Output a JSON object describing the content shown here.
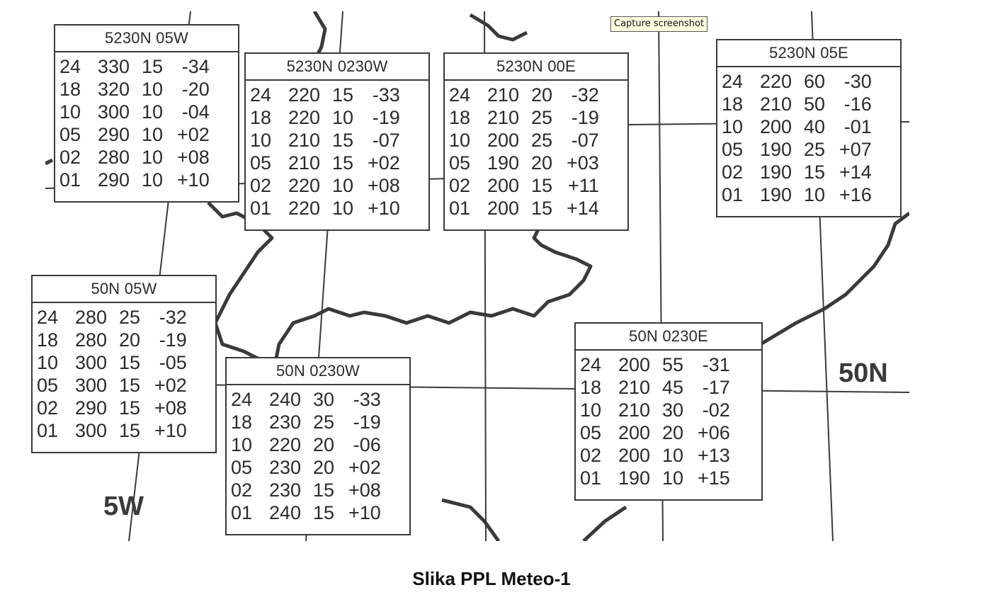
{
  "tooltip": "Capture screenshot",
  "caption": "Slika PPL Meteo-1",
  "labels": {
    "lat": "50N",
    "lon": "5W"
  },
  "boxes": [
    {
      "title": "5230N 05W",
      "rows": [
        [
          "24",
          "330",
          "15",
          "-34"
        ],
        [
          "18",
          "320",
          "10",
          "-20"
        ],
        [
          "10",
          "300",
          "10",
          "-04"
        ],
        [
          "05",
          "290",
          "10",
          "+02"
        ],
        [
          "02",
          "280",
          "10",
          "+08"
        ],
        [
          "01",
          "290",
          "10",
          "+10"
        ]
      ]
    },
    {
      "title": "5230N 0230W",
      "rows": [
        [
          "24",
          "220",
          "15",
          "-33"
        ],
        [
          "18",
          "220",
          "10",
          "-19"
        ],
        [
          "10",
          "210",
          "15",
          "-07"
        ],
        [
          "05",
          "210",
          "15",
          "+02"
        ],
        [
          "02",
          "220",
          "10",
          "+08"
        ],
        [
          "01",
          "220",
          "10",
          "+10"
        ]
      ]
    },
    {
      "title": "5230N 00E",
      "rows": [
        [
          "24",
          "210",
          "20",
          "-32"
        ],
        [
          "18",
          "210",
          "25",
          "-19"
        ],
        [
          "10",
          "200",
          "25",
          "-07"
        ],
        [
          "05",
          "190",
          "20",
          "+03"
        ],
        [
          "02",
          "200",
          "15",
          "+11"
        ],
        [
          "01",
          "200",
          "15",
          "+14"
        ]
      ]
    },
    {
      "title": "5230N 05E",
      "rows": [
        [
          "24",
          "220",
          "60",
          "-30"
        ],
        [
          "18",
          "210",
          "50",
          "-16"
        ],
        [
          "10",
          "200",
          "40",
          "-01"
        ],
        [
          "05",
          "190",
          "25",
          "+07"
        ],
        [
          "02",
          "190",
          "15",
          "+14"
        ],
        [
          "01",
          "190",
          "10",
          "+16"
        ]
      ]
    },
    {
      "title": "50N 05W",
      "rows": [
        [
          "24",
          "280",
          "25",
          "-32"
        ],
        [
          "18",
          "280",
          "20",
          "-19"
        ],
        [
          "10",
          "300",
          "15",
          "-05"
        ],
        [
          "05",
          "300",
          "15",
          "+02"
        ],
        [
          "02",
          "290",
          "15",
          "+08"
        ],
        [
          "01",
          "300",
          "15",
          "+10"
        ]
      ]
    },
    {
      "title": "50N 0230W",
      "rows": [
        [
          "24",
          "240",
          "30",
          "-33"
        ],
        [
          "18",
          "230",
          "25",
          "-19"
        ],
        [
          "10",
          "220",
          "20",
          "-06"
        ],
        [
          "05",
          "230",
          "20",
          "+02"
        ],
        [
          "02",
          "230",
          "15",
          "+08"
        ],
        [
          "01",
          "240",
          "15",
          "+10"
        ]
      ]
    },
    {
      "title": "50N 0230E",
      "rows": [
        [
          "24",
          "200",
          "55",
          "-31"
        ],
        [
          "18",
          "210",
          "45",
          "-17"
        ],
        [
          "10",
          "210",
          "30",
          "-02"
        ],
        [
          "05",
          "200",
          "20",
          "+06"
        ],
        [
          "02",
          "200",
          "10",
          "+13"
        ],
        [
          "01",
          "190",
          "10",
          "+15"
        ]
      ]
    }
  ]
}
